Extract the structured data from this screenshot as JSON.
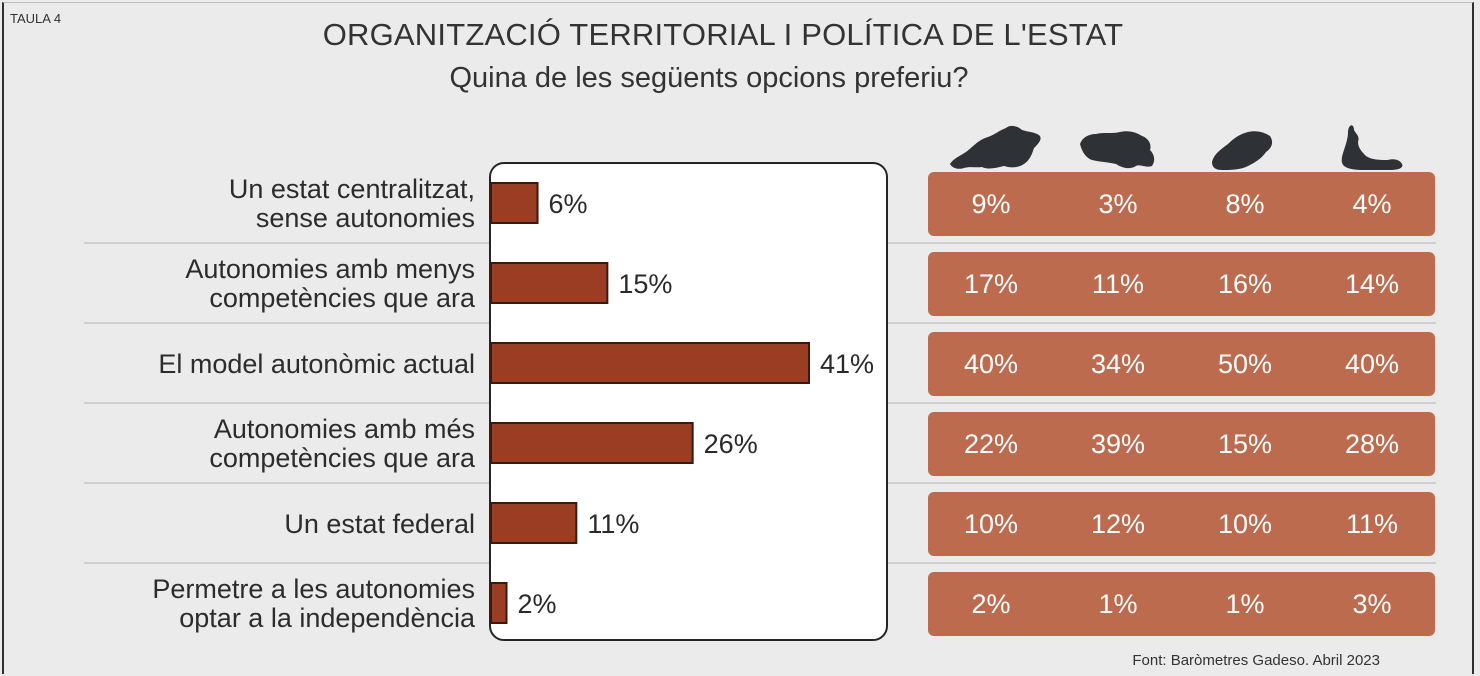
{
  "tag": "TAULA 4",
  "title": "ORGANITZACIÓ TERRITORIAL I POLÍTICA DE L'ESTAT",
  "subtitle": "Quina de les següents opcions preferiu?",
  "source": "Font: Baròmetres Gadeso. Abril 2023",
  "colors": {
    "bar": "#9a3d22",
    "bar_outline": "#3a1a10",
    "island_panel": "#bc6b4f",
    "island_silhouette": "#2e3136",
    "panel_bg": "#ffffff",
    "page_bg": "#ebebeb"
  },
  "islands": [
    {
      "icon": "mallorca-silhouette-icon"
    },
    {
      "icon": "menorca-silhouette-icon"
    },
    {
      "icon": "eivissa-silhouette-icon"
    },
    {
      "icon": "formentera-silhouette-icon"
    }
  ],
  "chart_data": {
    "type": "bar",
    "orientation": "horizontal",
    "title": "ORGANITZACIÓ TERRITORIAL I POLÍTICA DE L'ESTAT",
    "subtitle": "Quina de les següents opcions preferiu?",
    "categories": [
      [
        "Un estat centralitzat,",
        "sense autonomies"
      ],
      [
        "Autonomies amb menys",
        "competències que ara"
      ],
      [
        "El model autonòmic actual"
      ],
      [
        "Autonomies amb més",
        "competències que ara"
      ],
      [
        "Un estat federal"
      ],
      [
        "Permetre a les autonomies",
        "optar a la independència"
      ]
    ],
    "values": [
      6,
      15,
      41,
      26,
      11,
      2
    ],
    "value_labels": [
      "6%",
      "15%",
      "41%",
      "26%",
      "11%",
      "2%"
    ],
    "xlim": [
      0,
      41
    ],
    "grid": false,
    "breakdown_by_island": [
      [
        "9%",
        "3%",
        "8%",
        "4%"
      ],
      [
        "17%",
        "11%",
        "16%",
        "14%"
      ],
      [
        "40%",
        "34%",
        "50%",
        "40%"
      ],
      [
        "22%",
        "39%",
        "15%",
        "28%"
      ],
      [
        "10%",
        "12%",
        "10%",
        "11%"
      ],
      [
        "2%",
        "1%",
        "1%",
        "3%"
      ]
    ]
  }
}
